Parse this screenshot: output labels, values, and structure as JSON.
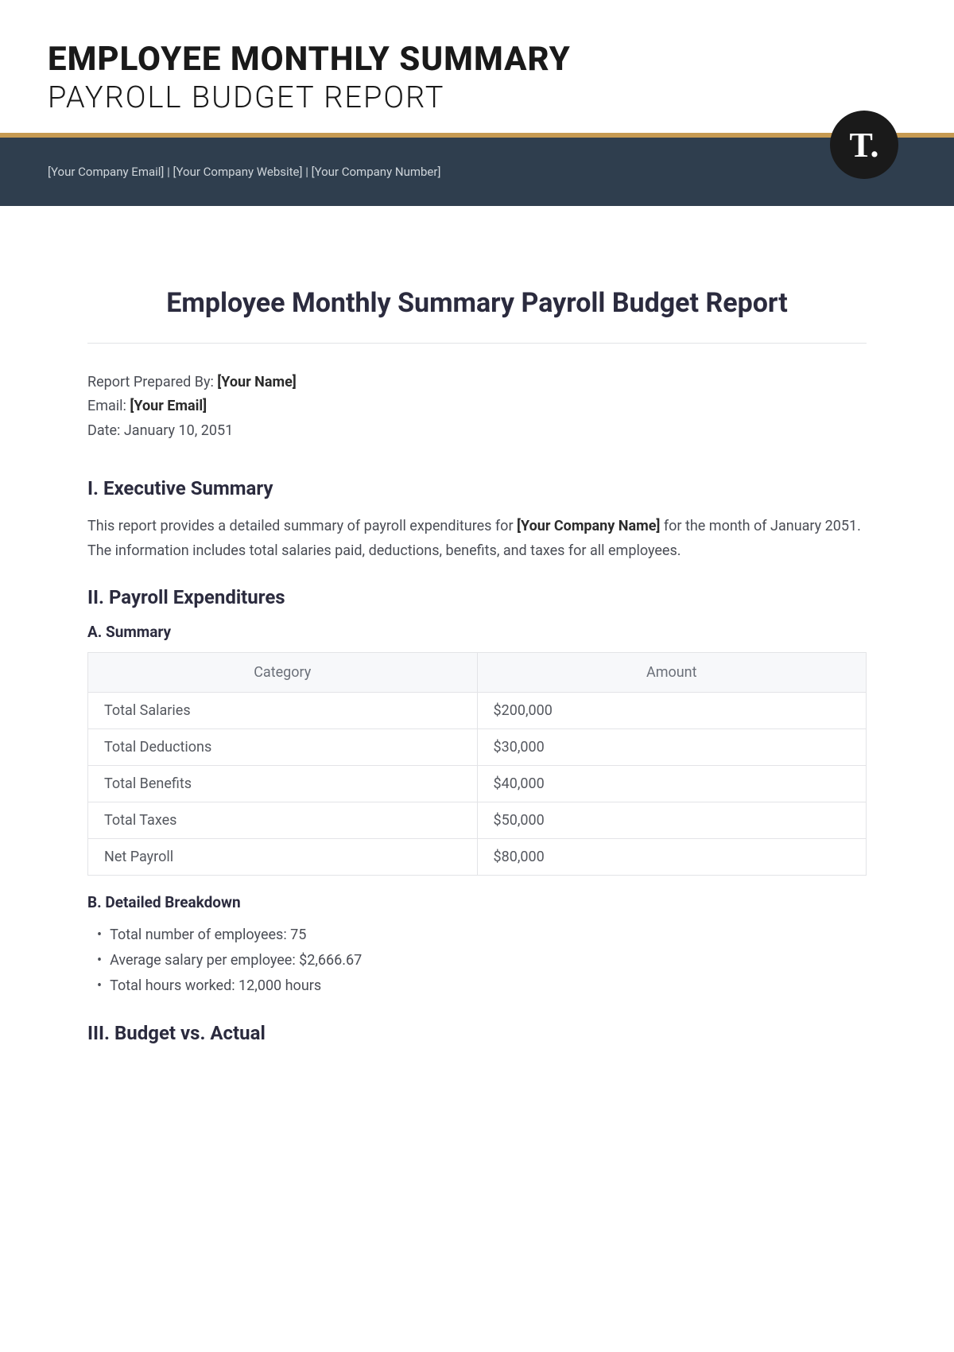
{
  "header": {
    "title_line1": "EMPLOYEE MONTHLY SUMMARY",
    "title_line2": "PAYROLL BUDGET REPORT",
    "company_info": "[Your Company Email]   |  [Your Company Website] |  [Your Company Number]",
    "logo_text": "T.",
    "band_bg": "#2f3e4e",
    "accent_color": "#c69a52"
  },
  "doc": {
    "title": "Employee Monthly Summary Payroll Budget Report"
  },
  "meta": {
    "prepared_by_label": "Report Prepared By: ",
    "prepared_by_value": "[Your Name]",
    "email_label": "Email: ",
    "email_value": "[Your Email]",
    "date_label": "Date: ",
    "date_value": "January 10, 2051"
  },
  "sections": {
    "exec": {
      "heading": "I. Executive Summary",
      "body_pre": "This report provides a detailed summary of payroll expenditures for ",
      "body_bold": "[Your Company Name]",
      "body_post": " for the month of January 2051. The information includes total salaries paid, deductions, benefits, and taxes for all employees."
    },
    "payroll": {
      "heading": "II. Payroll Expenditures",
      "sub_a": "A. Summary",
      "table": {
        "col1": "Category",
        "col2": "Amount",
        "rows": [
          {
            "cat": "Total Salaries",
            "amt": "$200,000"
          },
          {
            "cat": "Total Deductions",
            "amt": "$30,000"
          },
          {
            "cat": "Total Benefits",
            "amt": "$40,000"
          },
          {
            "cat": "Total Taxes",
            "amt": "$50,000"
          },
          {
            "cat": "Net Payroll",
            "amt": "$80,000"
          }
        ]
      },
      "sub_b": "B. Detailed Breakdown",
      "breakdown": [
        "Total number of employees: 75",
        "Average salary per employee: $2,666.67",
        "Total hours worked: 12,000 hours"
      ]
    },
    "budget": {
      "heading": "III. Budget vs. Actual"
    }
  },
  "styling": {
    "table_header_bg": "#f7f8fa",
    "table_border": "#e3e4e7",
    "text_color": "#4a4d55",
    "heading_color": "#2b2b3e"
  }
}
